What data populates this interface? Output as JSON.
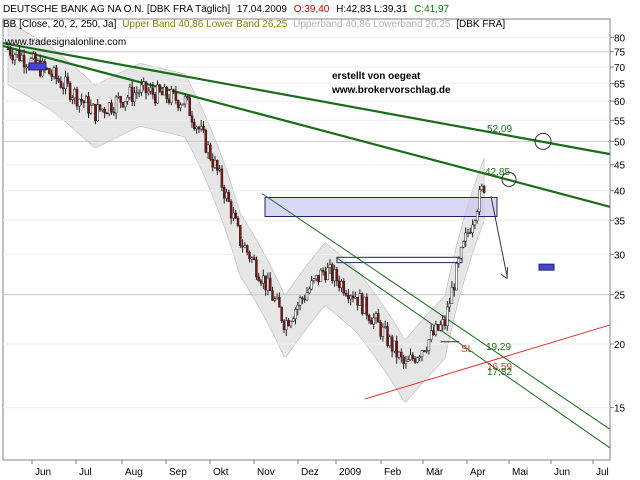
{
  "header": {
    "line1": {
      "name": "DEUTSCHE BANK AG NA O.N. [DBK FRA  Täglich]",
      "date": "17.04.2009",
      "open": "O:39,40",
      "hlc": "H:42,83 L:39,31",
      "close": "C:41,97"
    },
    "line2": {
      "prefix": "BB [Close, 20, 2, 250, Ja]",
      "bands": "Upper Band 40,86 Lower Band 26,25",
      "bands_faded": "Upperband 40,86 Lowerband 26,25",
      "symbol": "[DBK FRA]"
    },
    "source": "www.tradesignalonline.com"
  },
  "watermark": {
    "line1": "erstellt von oegeat",
    "line2": "www.brokervorschlag.de"
  },
  "colors": {
    "candle_down": "#8b1010",
    "candle_up": "#ffffff",
    "trend_green": "#1a6b1a",
    "support_red": "#e03030",
    "band_fill": "#e6e6e6",
    "box_fill": "#c8c8f0",
    "box_stroke": "#222266",
    "marker_blue": "#4646d2",
    "open_red": "#c00000",
    "close_green": "#008000",
    "upper_band_text": "#808000"
  },
  "chart_data": {
    "type": "candlestick",
    "title": "DEUTSCHE BANK AG NA O.N. [DBK FRA  Täglich]",
    "xlabel": "",
    "ylabel": "",
    "ylim": [
      12,
      80
    ],
    "y_scale": "log",
    "grid": true,
    "y_ticks": [
      15,
      20,
      25,
      30,
      35,
      40,
      45,
      50,
      55,
      60,
      65,
      70,
      75,
      80
    ],
    "x_tick_labels": [
      "Jun",
      "Jul",
      "Aug",
      "Sep",
      "Okt",
      "Nov",
      "Dez",
      "2009",
      "Feb",
      "Mär",
      "Apr",
      "Mai",
      "Jun",
      "Jul"
    ],
    "bollinger": {
      "period": 20,
      "stddev": 2,
      "upper_band": 40.86,
      "lower_band": 26.25
    },
    "anchor_closes": [
      {
        "month": "Mai 2008",
        "close": 76
      },
      {
        "month": "Jun 2008",
        "close": 68
      },
      {
        "month": "Jul 2008",
        "close": 57
      },
      {
        "month": "Aug 2008",
        "close": 63
      },
      {
        "month": "Sep 2008",
        "close": 60
      },
      {
        "month": "Okt 2008",
        "close": 32
      },
      {
        "month": "Nov 2008",
        "close": 22
      },
      {
        "month": "Dez 2008",
        "close": 28
      },
      {
        "month": "Jan 2009",
        "close": 25
      },
      {
        "month": "Feb 2009",
        "close": 18
      },
      {
        "month": "Mär 2009",
        "close": 22
      },
      {
        "month": "Apr 2009",
        "close": 41.97
      }
    ],
    "last_bar": {
      "date": "17.04.2009",
      "open": 39.4,
      "high": 42.83,
      "low": 39.31,
      "close": 41.97
    },
    "annotations": {
      "upper_resistance": "52,09",
      "lower_resistance": "42,85",
      "support_a": "19,29",
      "support_b": "16,59",
      "support_c": "17,82",
      "stop_loss": "SL"
    }
  }
}
